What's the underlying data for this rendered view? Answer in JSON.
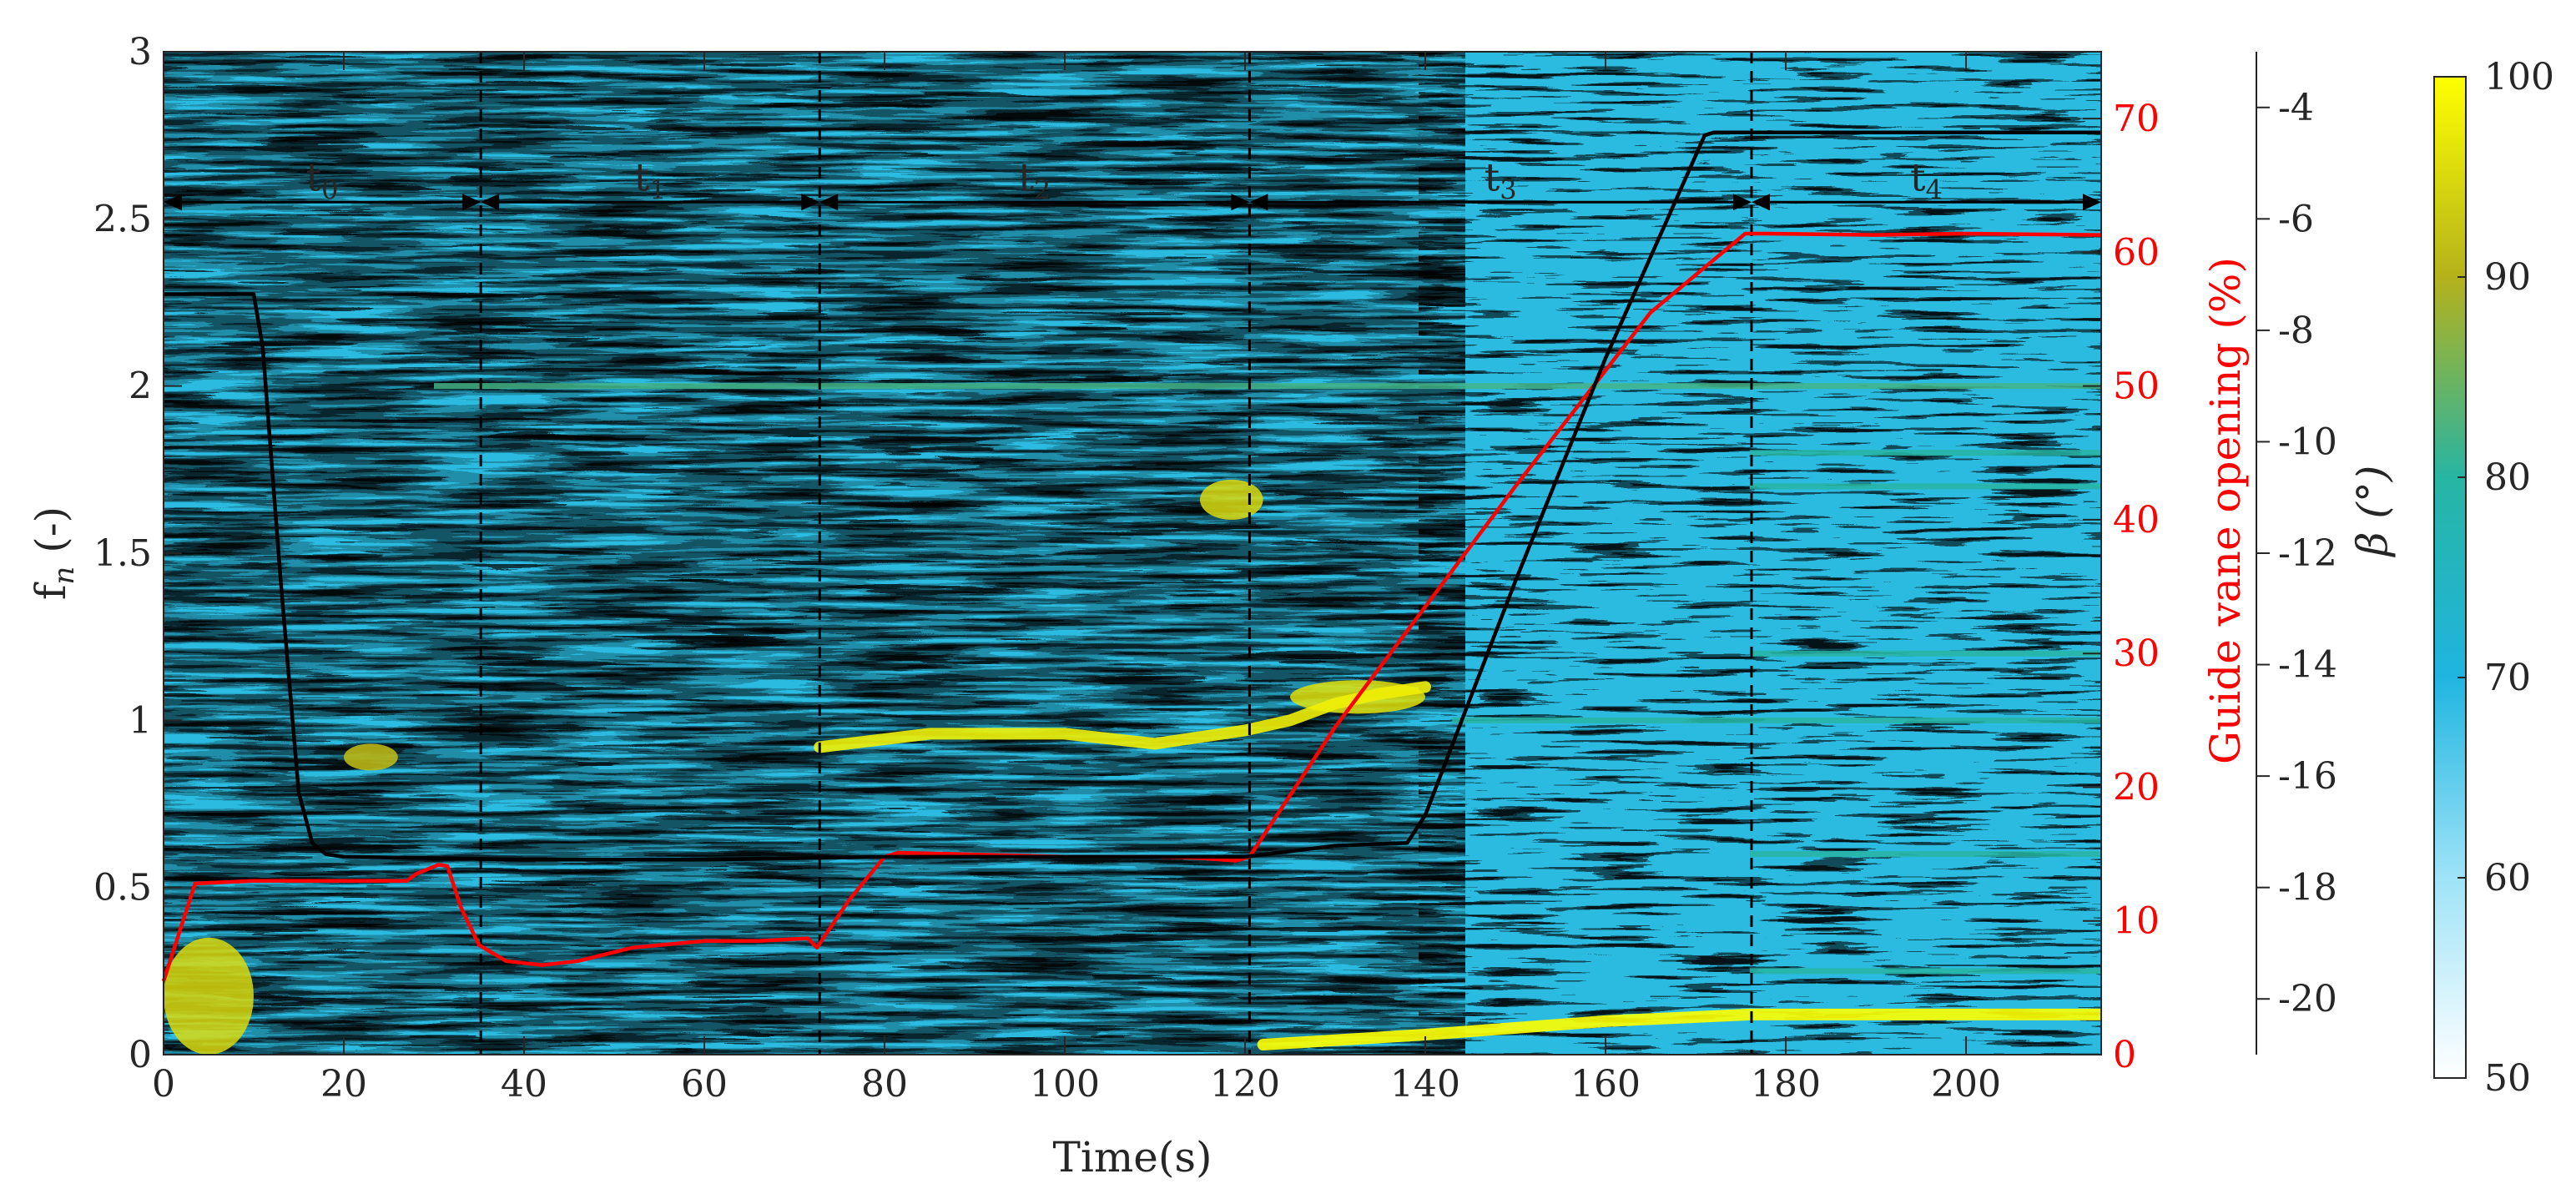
{
  "chart_data": {
    "type": "heatmap",
    "xlabel": "Time(s)",
    "ylabel": "f",
    "ylabel_sub": "n",
    "ylabel_suffix": " (-)",
    "x_ticks": [
      "0",
      "20",
      "40",
      "60",
      "80",
      "100",
      "120",
      "140",
      "160",
      "180",
      "200"
    ],
    "y_ticks": [
      "0",
      "0.5",
      "1",
      "1.5",
      "2",
      "2.5",
      "3"
    ],
    "right_axis_1": {
      "label": "Guide vane opening (%)",
      "ticks": [
        "0",
        "10",
        "20",
        "30",
        "40",
        "50",
        "60",
        "70"
      ],
      "color": "#ff0000"
    },
    "right_axis_2": {
      "label": "β (°)",
      "ticks": [
        "-4",
        "-6",
        "-8",
        "-10",
        "-12",
        "-14",
        "-16",
        "-18",
        "-20"
      ]
    },
    "colorbar": {
      "ticks": [
        "100",
        "90",
        "80",
        "70",
        "60",
        "50"
      ],
      "range": [
        50,
        100
      ]
    },
    "xlim": [
      0,
      215
    ],
    "ylim": [
      0,
      3
    ],
    "gvo_lim": [
      0,
      75
    ],
    "beta_lim": [
      -21,
      -3
    ],
    "intervals": [
      {
        "base": "t",
        "sub": "0",
        "start": 0,
        "end": 35.2
      },
      {
        "base": "t",
        "sub": "1",
        "start": 35.2,
        "end": 72.8
      },
      {
        "base": "t",
        "sub": "2",
        "start": 72.8,
        "end": 120.5
      },
      {
        "base": "t",
        "sub": "3",
        "start": 120.5,
        "end": 176.2
      },
      {
        "base": "t",
        "sub": "4",
        "start": 176.2,
        "end": 215
      }
    ],
    "vlines": [
      35.2,
      72.8,
      120.5,
      176.2
    ],
    "series": [
      {
        "name": "Guide vane opening",
        "axis": "right1",
        "color": "#ff0000",
        "x": [
          0,
          3.5,
          10,
          20,
          27,
          28,
          30.5,
          31.5,
          33,
          35,
          38,
          42,
          46,
          52,
          60,
          66,
          71.5,
          72.5,
          76,
          80,
          81.5,
          88,
          100,
          110,
          115,
          119,
          120.5,
          130,
          150,
          165,
          175.5,
          178,
          190,
          200,
          215
        ],
        "y": [
          5.5,
          12.8,
          13,
          13,
          13,
          13.5,
          14.2,
          14.1,
          11,
          8.2,
          7,
          6.7,
          7,
          8,
          8.5,
          8.5,
          8.7,
          8,
          11.5,
          14.8,
          15.1,
          15,
          14.8,
          14.8,
          14.7,
          14.5,
          14.8,
          24.5,
          42.5,
          55.5,
          61.4,
          61.4,
          61.3,
          61.4,
          61.3
        ]
      },
      {
        "name": "β",
        "axis": "right2",
        "color": "#000000",
        "x": [
          0,
          10,
          11,
          13,
          15,
          16.5,
          18,
          20,
          40,
          60,
          80,
          100,
          120,
          125,
          130,
          138,
          140,
          150,
          160,
          171,
          172,
          180,
          200,
          215
        ],
        "y": [
          -7.35,
          -7.35,
          -8.3,
          -12.5,
          -16.3,
          -17.2,
          -17.4,
          -17.45,
          -17.5,
          -17.5,
          -17.45,
          -17.45,
          -17.45,
          -17.35,
          -17.25,
          -17.2,
          -16.7,
          -12.5,
          -8.5,
          -4.5,
          -4.45,
          -4.45,
          -4.45,
          -4.45
        ]
      }
    ],
    "horizontal_lines": [
      {
        "y": 2.0,
        "x_start": 30,
        "x_end": 215,
        "value": 82
      },
      {
        "y": 1.8,
        "x_start": 176,
        "x_end": 215,
        "value": 80
      },
      {
        "y": 1.7,
        "x_start": 176,
        "x_end": 215,
        "value": 80
      },
      {
        "y": 1.2,
        "x_start": 176,
        "x_end": 215,
        "value": 80
      },
      {
        "y": 1.0,
        "x_start": 143,
        "x_end": 215,
        "value": 80
      },
      {
        "y": 0.6,
        "x_start": 176,
        "x_end": 215,
        "value": 80
      },
      {
        "y": 0.25,
        "x_start": 176,
        "x_end": 215,
        "value": 80
      }
    ],
    "yellow_traces": [
      {
        "x": [
          72.8,
          85,
          100,
          110,
          120,
          125,
          130,
          135,
          140
        ],
        "y": [
          0.92,
          0.96,
          0.96,
          0.93,
          0.97,
          1.0,
          1.05,
          1.08,
          1.1
        ],
        "value": 98
      },
      {
        "x": [
          122,
          140,
          160,
          176,
          195,
          215
        ],
        "y": [
          0.03,
          0.06,
          0.1,
          0.12,
          0.12,
          0.12
        ],
        "value": 100
      }
    ],
    "yellow_patches": [
      {
        "x": 0,
        "y": 0.0,
        "w": 10,
        "h": 0.35,
        "value": 95
      },
      {
        "x": 115,
        "y": 1.6,
        "w": 7,
        "h": 0.12,
        "value": 95
      },
      {
        "x": 20,
        "y": 0.85,
        "w": 6,
        "h": 0.08,
        "value": 92
      },
      {
        "x": 125,
        "y": 1.02,
        "w": 15,
        "h": 0.1,
        "value": 96
      }
    ]
  }
}
